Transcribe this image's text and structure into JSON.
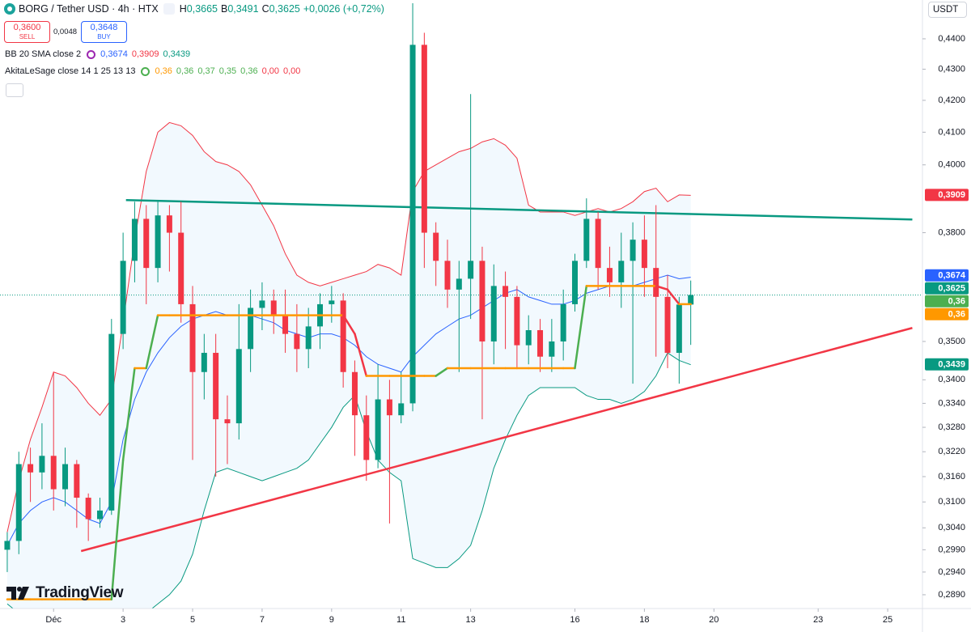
{
  "header": {
    "symbol": "BORG / Tether USD · 4h · HTX",
    "ohlc": [
      {
        "key": "H",
        "value": "0,3665"
      },
      {
        "key": "B",
        "value": "0,3491"
      },
      {
        "key": "C",
        "value": "0,3625"
      }
    ],
    "change": "+0,0026 (+0,72%)",
    "sell": {
      "price": "0,3600",
      "label": "SELL"
    },
    "spread": "0,0048",
    "buy": {
      "price": "0,3648",
      "label": "BUY"
    }
  },
  "indicators": [
    {
      "name": "BB 20 SMA close 2",
      "values": [
        {
          "label": "0,3674",
          "color": "#2962ff"
        },
        {
          "label": "0,3909",
          "color": "#f23645"
        },
        {
          "label": "0,3439",
          "color": "#089981"
        }
      ]
    },
    {
      "name": "AkitaLeSage close 14 1 25 13 13",
      "values": [
        {
          "label": "0,36",
          "color": "#ff9800"
        },
        {
          "label": "0,36",
          "color": "#4caf50"
        },
        {
          "label": "0,37",
          "color": "#4caf50"
        },
        {
          "label": "0,35",
          "color": "#4caf50"
        },
        {
          "label": "0,36",
          "color": "#4caf50"
        },
        {
          "label": "0,00",
          "color": "#f23645"
        },
        {
          "label": "0,00",
          "color": "#f23645"
        }
      ]
    }
  ],
  "currency": "USDT",
  "brand": "TradingView",
  "chart_data": {
    "type": "candlestick",
    "log": true,
    "grid": false,
    "xlim": [
      -37,
      600
    ],
    "ylim": [
      0.286,
      0.4531
    ],
    "xticks": [
      {
        "value": 0,
        "label": "Déc"
      },
      {
        "value": 48,
        "label": "3"
      },
      {
        "value": 96,
        "label": "5"
      },
      {
        "value": 144,
        "label": "7"
      },
      {
        "value": 192,
        "label": "9"
      },
      {
        "value": 240,
        "label": "11"
      },
      {
        "value": 288,
        "label": "13"
      },
      {
        "value": 360,
        "label": "16"
      },
      {
        "value": 408,
        "label": "18"
      },
      {
        "value": 456,
        "label": "20"
      },
      {
        "value": 528,
        "label": "23"
      },
      {
        "value": 576,
        "label": "25"
      }
    ],
    "yticks": [
      {
        "value": 0.44,
        "label": "0,4400"
      },
      {
        "value": 0.43,
        "label": "0,4300"
      },
      {
        "value": 0.42,
        "label": "0,4200"
      },
      {
        "value": 0.41,
        "label": "0,4100"
      },
      {
        "value": 0.4,
        "label": "0,4000"
      },
      {
        "value": 0.38,
        "label": "0,3800"
      },
      {
        "value": 0.35,
        "label": "0,3500"
      },
      {
        "value": 0.34,
        "label": "0,3400"
      },
      {
        "value": 0.334,
        "label": "0,3340"
      },
      {
        "value": 0.328,
        "label": "0,3280"
      },
      {
        "value": 0.322,
        "label": "0,3220"
      },
      {
        "value": 0.316,
        "label": "0,3160"
      },
      {
        "value": 0.31,
        "label": "0,3100"
      },
      {
        "value": 0.304,
        "label": "0,3040"
      },
      {
        "value": 0.299,
        "label": "0,2990"
      },
      {
        "value": 0.294,
        "label": "0,2940"
      },
      {
        "value": 0.289,
        "label": "0,2890"
      }
    ],
    "colors": {
      "up": "#089981",
      "down": "#f23645"
    },
    "x": [
      -32,
      -24,
      -16,
      -8,
      0,
      8,
      16,
      24,
      32,
      40,
      48,
      56,
      64,
      72,
      80,
      88,
      96,
      104,
      112,
      120,
      128,
      136,
      144,
      152,
      160,
      168,
      176,
      184,
      192,
      200,
      208,
      216,
      224,
      232,
      240,
      248,
      256,
      264,
      272,
      280,
      288,
      296,
      304,
      312,
      320,
      328,
      336,
      344,
      352,
      360,
      368,
      376,
      384,
      392,
      400,
      408,
      416,
      424,
      432,
      440
    ],
    "ohlc": [
      [
        0.299,
        0.303,
        0.294,
        0.301
      ],
      [
        0.301,
        0.322,
        0.298,
        0.319
      ],
      [
        0.319,
        0.323,
        0.31,
        0.317
      ],
      [
        0.317,
        0.329,
        0.313,
        0.321
      ],
      [
        0.321,
        0.342,
        0.308,
        0.313
      ],
      [
        0.313,
        0.323,
        0.309,
        0.319
      ],
      [
        0.319,
        0.32,
        0.304,
        0.311
      ],
      [
        0.311,
        0.312,
        0.301,
        0.306
      ],
      [
        0.306,
        0.311,
        0.304,
        0.308
      ],
      [
        0.308,
        0.356,
        0.307,
        0.352
      ],
      [
        0.352,
        0.38,
        0.348,
        0.372
      ],
      [
        0.372,
        0.389,
        0.366,
        0.384
      ],
      [
        0.384,
        0.388,
        0.36,
        0.37
      ],
      [
        0.37,
        0.389,
        0.366,
        0.385
      ],
      [
        0.385,
        0.388,
        0.369,
        0.38
      ],
      [
        0.38,
        0.389,
        0.355,
        0.36
      ],
      [
        0.36,
        0.365,
        0.32,
        0.342
      ],
      [
        0.342,
        0.352,
        0.335,
        0.347
      ],
      [
        0.347,
        0.352,
        0.316,
        0.33
      ],
      [
        0.33,
        0.336,
        0.319,
        0.329
      ],
      [
        0.329,
        0.36,
        0.325,
        0.348
      ],
      [
        0.348,
        0.364,
        0.342,
        0.359
      ],
      [
        0.359,
        0.366,
        0.353,
        0.361
      ],
      [
        0.361,
        0.364,
        0.352,
        0.357
      ],
      [
        0.357,
        0.364,
        0.347,
        0.352
      ],
      [
        0.352,
        0.36,
        0.342,
        0.348
      ],
      [
        0.348,
        0.359,
        0.343,
        0.354
      ],
      [
        0.354,
        0.363,
        0.348,
        0.36
      ],
      [
        0.36,
        0.365,
        0.355,
        0.361
      ],
      [
        0.361,
        0.363,
        0.338,
        0.342
      ],
      [
        0.342,
        0.345,
        0.321,
        0.331
      ],
      [
        0.331,
        0.336,
        0.315,
        0.32
      ],
      [
        0.32,
        0.344,
        0.318,
        0.335
      ],
      [
        0.335,
        0.34,
        0.305,
        0.331
      ],
      [
        0.331,
        0.342,
        0.329,
        0.334
      ],
      [
        0.334,
        0.452,
        0.332,
        0.438
      ],
      [
        0.438,
        0.442,
        0.37,
        0.38
      ],
      [
        0.38,
        0.383,
        0.365,
        0.372
      ],
      [
        0.372,
        0.378,
        0.359,
        0.364
      ],
      [
        0.364,
        0.372,
        0.342,
        0.367
      ],
      [
        0.367,
        0.422,
        0.356,
        0.372
      ],
      [
        0.372,
        0.376,
        0.33,
        0.35
      ],
      [
        0.35,
        0.371,
        0.344,
        0.365
      ],
      [
        0.365,
        0.369,
        0.348,
        0.362
      ],
      [
        0.362,
        0.365,
        0.343,
        0.349
      ],
      [
        0.349,
        0.357,
        0.344,
        0.353
      ],
      [
        0.353,
        0.356,
        0.342,
        0.346
      ],
      [
        0.346,
        0.356,
        0.342,
        0.35
      ],
      [
        0.35,
        0.364,
        0.345,
        0.36
      ],
      [
        0.36,
        0.374,
        0.358,
        0.372
      ],
      [
        0.372,
        0.39,
        0.37,
        0.384
      ],
      [
        0.384,
        0.386,
        0.364,
        0.37
      ],
      [
        0.37,
        0.376,
        0.362,
        0.366
      ],
      [
        0.366,
        0.38,
        0.359,
        0.372
      ],
      [
        0.372,
        0.383,
        0.339,
        0.378
      ],
      [
        0.378,
        0.385,
        0.362,
        0.37
      ],
      [
        0.37,
        0.388,
        0.346,
        0.362
      ],
      [
        0.362,
        0.368,
        0.343,
        0.347
      ],
      [
        0.347,
        0.362,
        0.339,
        0.3599
      ],
      [
        0.3599,
        0.3665,
        0.3491,
        0.3625
      ]
    ],
    "bb": {
      "colors": {
        "upper": "#f23645",
        "basis": "#2962ff",
        "lower": "#089981",
        "fill": "#2196f3"
      },
      "upper": [
        0.303,
        0.315,
        0.325,
        0.333,
        0.342,
        0.341,
        0.338,
        0.334,
        0.331,
        0.335,
        0.355,
        0.378,
        0.398,
        0.41,
        0.413,
        0.412,
        0.409,
        0.404,
        0.401,
        0.4,
        0.398,
        0.394,
        0.388,
        0.382,
        0.374,
        0.368,
        0.366,
        0.365,
        0.366,
        0.367,
        0.368,
        0.369,
        0.371,
        0.37,
        0.368,
        0.392,
        0.398,
        0.4,
        0.402,
        0.404,
        0.405,
        0.407,
        0.408,
        0.406,
        0.402,
        0.388,
        0.386,
        0.386,
        0.386,
        0.385,
        0.386,
        0.387,
        0.386,
        0.387,
        0.389,
        0.392,
        0.393,
        0.389,
        0.391,
        0.3909
      ],
      "basis": [
        0.3,
        0.305,
        0.308,
        0.31,
        0.311,
        0.31,
        0.308,
        0.306,
        0.305,
        0.31,
        0.325,
        0.335,
        0.342,
        0.347,
        0.351,
        0.354,
        0.356,
        0.357,
        0.358,
        0.357,
        0.357,
        0.357,
        0.356,
        0.355,
        0.353,
        0.352,
        0.351,
        0.352,
        0.352,
        0.351,
        0.349,
        0.346,
        0.344,
        0.343,
        0.342,
        0.346,
        0.349,
        0.352,
        0.354,
        0.356,
        0.357,
        0.359,
        0.361,
        0.363,
        0.364,
        0.362,
        0.361,
        0.36,
        0.36,
        0.361,
        0.363,
        0.364,
        0.365,
        0.365,
        0.365,
        0.366,
        0.367,
        0.368,
        0.367,
        0.3674
      ],
      "lower": [
        0.287,
        0.285,
        0.283,
        0.283,
        0.281,
        0.28,
        0.279,
        0.278,
        0.279,
        0.28,
        0.283,
        0.284,
        0.285,
        0.287,
        0.289,
        0.292,
        0.298,
        0.308,
        0.317,
        0.318,
        0.317,
        0.316,
        0.315,
        0.316,
        0.317,
        0.318,
        0.32,
        0.324,
        0.328,
        0.333,
        0.336,
        0.327,
        0.32,
        0.317,
        0.315,
        0.297,
        0.296,
        0.295,
        0.295,
        0.297,
        0.3,
        0.308,
        0.318,
        0.325,
        0.331,
        0.336,
        0.338,
        0.338,
        0.338,
        0.338,
        0.336,
        0.335,
        0.335,
        0.334,
        0.335,
        0.337,
        0.341,
        0.347,
        0.345,
        0.3439
      ]
    },
    "akita": {
      "colors": {
        "up": "#4caf50",
        "down": "#f23645",
        "flat": "#ff9800"
      },
      "values": [
        0.288,
        0.288,
        0.288,
        0.288,
        0.288,
        0.288,
        0.288,
        0.288,
        0.288,
        0.288,
        0.32,
        0.343,
        0.343,
        0.357,
        0.357,
        0.357,
        0.357,
        0.357,
        0.357,
        0.357,
        0.357,
        0.357,
        0.357,
        0.357,
        0.357,
        0.357,
        0.357,
        0.357,
        0.357,
        0.357,
        0.352,
        0.341,
        0.341,
        0.341,
        0.341,
        0.341,
        0.341,
        0.341,
        0.343,
        0.343,
        0.343,
        0.343,
        0.343,
        0.343,
        0.343,
        0.343,
        0.343,
        0.343,
        0.343,
        0.343,
        0.365,
        0.365,
        0.365,
        0.365,
        0.365,
        0.365,
        0.365,
        0.364,
        0.36,
        0.36
      ]
    },
    "trendlines": [
      {
        "x": [
          50,
          593
        ],
        "y": [
          0.3895,
          0.3838
        ],
        "color": "#089981"
      },
      {
        "x": [
          19,
          593
        ],
        "y": [
          0.2987,
          0.3536
        ],
        "color": "#f23645"
      }
    ],
    "price_labels": [
      {
        "value": 0.3909,
        "label": "0,3909",
        "color": "#f23645"
      },
      {
        "value": 0.3674,
        "label": "0,3674",
        "color": "#2962ff"
      },
      {
        "value": 0.3625,
        "label": "0,3625",
        "color": "#089981"
      },
      {
        "value": 0.36,
        "label": "0,36",
        "color": "#4caf50"
      },
      {
        "value": 0.36,
        "label": "0,36",
        "color": "#ff9800"
      },
      {
        "value": 0.3439,
        "label": "0,3439",
        "color": "#089981"
      }
    ]
  }
}
